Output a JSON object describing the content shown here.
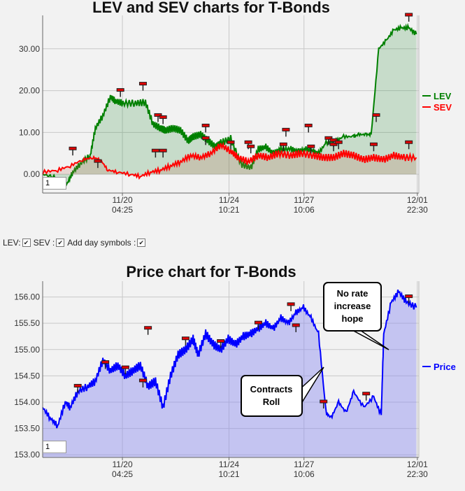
{
  "chart_data": [
    {
      "type": "area",
      "title": "LEV and SEV charts for T-Bonds",
      "xlabel": "",
      "ylabel": "",
      "ylim": [
        -4.5,
        38
      ],
      "yticks": [
        "0.00",
        "10.00",
        "20.00",
        "30.00"
      ],
      "ytick_values": [
        0,
        10,
        20,
        30
      ],
      "xticks": [
        {
          "date": "11/20",
          "time": "04:25"
        },
        {
          "date": "11/24",
          "time": "10:21"
        },
        {
          "date": "11/27",
          "time": "10:06"
        },
        {
          "date": "12/01",
          "time": "22:30"
        }
      ],
      "x_range_days": [
        "11/17",
        "12/01"
      ],
      "grid": true,
      "legend_position": "right",
      "series": [
        {
          "name": "LEV",
          "color": "#008000",
          "x": [
            0,
            0.6,
            1.0,
            1.2,
            1.5,
            1.9,
            2.1,
            2.4,
            2.7,
            2.9,
            3.2,
            3.7,
            4.1,
            4.4,
            4.7,
            4.9,
            5.2,
            5.5,
            5.8,
            6.0,
            6.3,
            6.6,
            6.9,
            7.1,
            7.5,
            7.9,
            8.3,
            8.6,
            8.9,
            9.2,
            9.5,
            9.9,
            10.2,
            10.5,
            10.8,
            11.0,
            11.3,
            11.7,
            12.0,
            12.4,
            12.6,
            12.9,
            13.1,
            13.4,
            13.7,
            14.0,
            14.3,
            14.6,
            14.9
          ],
          "y": [
            0,
            -1,
            -2,
            0.5,
            2.5,
            4.5,
            11,
            14,
            18.5,
            17.5,
            17,
            17,
            17.2,
            12,
            11,
            10.5,
            11,
            10.5,
            8,
            9,
            9.5,
            8,
            6.5,
            7.5,
            8.5,
            2.5,
            1.5,
            6,
            6.5,
            5,
            6,
            6,
            5.5,
            6,
            5.5,
            5,
            7.5,
            8,
            9,
            9,
            9.5,
            9.5,
            9.5,
            30,
            32,
            34.5,
            35,
            35,
            33.5
          ]
        },
        {
          "name": "SEV",
          "color": "#ff0000",
          "x": [
            0,
            0.6,
            1.1,
            1.6,
            2.0,
            2.3,
            2.6,
            3.0,
            3.5,
            3.9,
            4.3,
            4.7,
            5.1,
            5.5,
            5.9,
            6.3,
            6.7,
            7.1,
            7.5,
            7.8,
            8.2,
            8.6,
            9.0,
            9.4,
            9.9,
            10.3,
            10.8,
            11.2,
            11.6,
            12.0,
            12.4,
            12.8,
            13.2,
            13.6,
            14.0,
            14.4,
            14.9
          ],
          "y": [
            0.5,
            1,
            2,
            3.5,
            4,
            3.5,
            1,
            0.5,
            0,
            -0.5,
            0.5,
            1,
            2,
            3,
            4.5,
            4,
            5,
            7,
            5.5,
            4,
            3,
            4.5,
            4,
            5,
            4.5,
            5,
            4.5,
            4,
            4,
            5,
            4.5,
            3.5,
            4,
            3.5,
            4.5,
            4,
            4
          ]
        }
      ],
      "day_markers": [
        {
          "x": 1.2,
          "y": 6
        },
        {
          "x": 2.2,
          "y": 3
        },
        {
          "x": 3.1,
          "y": 20
        },
        {
          "x": 4.0,
          "y": 21.5
        },
        {
          "x": 4.6,
          "y": 14
        },
        {
          "x": 4.8,
          "y": 13.5
        },
        {
          "x": 4.5,
          "y": 5.5
        },
        {
          "x": 4.8,
          "y": 5.5
        },
        {
          "x": 6.5,
          "y": 11.5
        },
        {
          "x": 6.5,
          "y": 8.5
        },
        {
          "x": 7.5,
          "y": 7.5
        },
        {
          "x": 8.2,
          "y": 7.5
        },
        {
          "x": 8.3,
          "y": 6.5
        },
        {
          "x": 9.7,
          "y": 10.5
        },
        {
          "x": 9.6,
          "y": 7
        },
        {
          "x": 10.6,
          "y": 11.5
        },
        {
          "x": 10.7,
          "y": 6.5
        },
        {
          "x": 11.4,
          "y": 8.5
        },
        {
          "x": 11.6,
          "y": 8
        },
        {
          "x": 11.6,
          "y": 7
        },
        {
          "x": 11.8,
          "y": 7.5
        },
        {
          "x": 13.3,
          "y": 14
        },
        {
          "x": 13.2,
          "y": 7
        },
        {
          "x": 14.6,
          "y": 38
        },
        {
          "x": 14.6,
          "y": 7.5
        }
      ]
    },
    {
      "type": "area",
      "title": "Price chart for T-Bonds",
      "xlabel": "",
      "ylabel": "",
      "ylim": [
        152.95,
        156.3
      ],
      "yticks": [
        "153.00",
        "153.50",
        "154.00",
        "154.50",
        "155.00",
        "155.50",
        "156.00"
      ],
      "ytick_values": [
        153,
        153.5,
        154,
        154.5,
        155,
        155.5,
        156
      ],
      "xticks": [
        {
          "date": "11/20",
          "time": "04:25"
        },
        {
          "date": "11/24",
          "time": "10:21"
        },
        {
          "date": "11/27",
          "time": "10:06"
        },
        {
          "date": "12/01",
          "time": "22:30"
        }
      ],
      "grid": true,
      "legend_position": "right",
      "series": [
        {
          "name": "Price",
          "color": "#0000ff",
          "x": [
            0,
            0.3,
            0.6,
            0.9,
            1.1,
            1.4,
            1.8,
            2.1,
            2.4,
            2.7,
            3.0,
            3.3,
            3.6,
            3.9,
            4.2,
            4.5,
            4.8,
            5.1,
            5.4,
            5.7,
            6.0,
            6.2,
            6.5,
            6.8,
            7.1,
            7.4,
            7.7,
            8.0,
            8.3,
            8.6,
            8.9,
            9.2,
            9.5,
            9.8,
            10.1,
            10.4,
            10.7,
            11.0,
            11.3,
            11.5,
            11.8,
            12.1,
            12.4,
            12.8,
            13.2,
            13.5,
            13.6,
            13.9,
            14.2,
            14.5,
            14.9
          ],
          "y": [
            153.9,
            153.7,
            153.55,
            154.0,
            153.9,
            154.2,
            154.3,
            154.4,
            154.8,
            154.6,
            154.7,
            154.5,
            154.6,
            154.7,
            154.3,
            154.4,
            153.9,
            154.5,
            154.9,
            155.0,
            155.2,
            154.9,
            155.3,
            155.1,
            155.0,
            155.2,
            155.1,
            155.25,
            155.3,
            155.4,
            155.5,
            155.4,
            155.6,
            155.5,
            155.7,
            155.8,
            155.6,
            155.3,
            153.8,
            153.7,
            154.0,
            153.8,
            154.2,
            153.9,
            154.1,
            153.75,
            155.3,
            155.9,
            156.1,
            155.9,
            155.8
          ]
        }
      ],
      "day_markers": [
        {
          "x": 1.4,
          "y": 154.3
        },
        {
          "x": 2.5,
          "y": 154.75
        },
        {
          "x": 3.3,
          "y": 154.65
        },
        {
          "x": 4.0,
          "y": 154.4
        },
        {
          "x": 4.2,
          "y": 155.4
        },
        {
          "x": 5.7,
          "y": 155.2
        },
        {
          "x": 7.1,
          "y": 155.15
        },
        {
          "x": 8.6,
          "y": 155.5
        },
        {
          "x": 9.9,
          "y": 155.85
        },
        {
          "x": 10.1,
          "y": 155.45
        },
        {
          "x": 11.2,
          "y": 154.0
        },
        {
          "x": 12.9,
          "y": 154.15
        },
        {
          "x": 14.6,
          "y": 156.0
        }
      ],
      "annotations": [
        {
          "text": [
            "No rate",
            "increase",
            "hope"
          ]
        },
        {
          "text": [
            "Contracts",
            "Roll"
          ]
        }
      ]
    }
  ],
  "controls": {
    "lev_label": "LEV:",
    "sev_label": "SEV :",
    "day_symbols_label": "Add day symbols :"
  },
  "zoom_input_value": "1"
}
